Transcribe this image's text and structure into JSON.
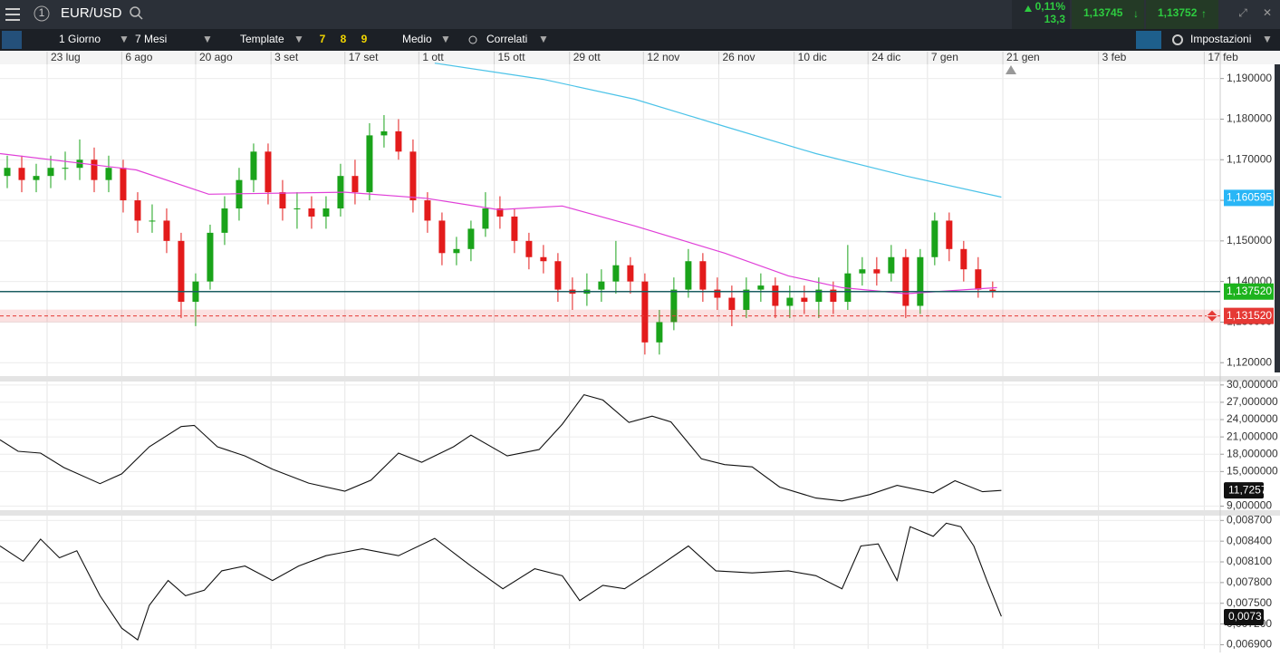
{
  "header": {
    "badge": "1",
    "symbol": "EUR/USD",
    "change_pct": "0,11%",
    "change_pts": "13,3",
    "bid": "1,13745",
    "ask": "1,13752"
  },
  "toolbar": {
    "interval": "1 Giorno",
    "range": "7 Mesi",
    "template": "Template",
    "presets": [
      "7",
      "8",
      "9"
    ],
    "average": "Medio",
    "correlated": "Correlati",
    "settings": "Impostazioni"
  },
  "chart_data": [
    {
      "type": "candlestick",
      "up_color": "#1aa31a",
      "down_color": "#e31b1b",
      "grid": true,
      "xlim": [
        -0.5,
        83.7
      ],
      "xticks": [
        {
          "value": 2.75,
          "label": "23 lug"
        },
        {
          "value": 7.9,
          "label": "6 ago"
        },
        {
          "value": 13,
          "label": "20 ago"
        },
        {
          "value": 18.2,
          "label": "3 set"
        },
        {
          "value": 23.3,
          "label": "17 set"
        },
        {
          "value": 28.4,
          "label": "1 ott"
        },
        {
          "value": 33.6,
          "label": "15 ott"
        },
        {
          "value": 38.8,
          "label": "29 ott"
        },
        {
          "value": 43.9,
          "label": "12 nov"
        },
        {
          "value": 49.1,
          "label": "26 nov"
        },
        {
          "value": 54.3,
          "label": "10 dic"
        },
        {
          "value": 59.4,
          "label": "24 dic"
        },
        {
          "value": 63.5,
          "label": "7 gen"
        },
        {
          "value": 68.7,
          "label": "21 gen"
        },
        {
          "value": 75.3,
          "label": "3 feb"
        },
        {
          "value": 82.6,
          "label": "17 feb"
        }
      ],
      "ylim": [
        1.1167,
        1.1935
      ],
      "yticks": [
        {
          "value": 1.19,
          "label": "1,190000"
        },
        {
          "value": 1.18,
          "label": "1,180000"
        },
        {
          "value": 1.17,
          "label": "1,170000"
        },
        {
          "value": 1.16,
          "label": "1,160000"
        },
        {
          "value": 1.15,
          "label": "1,150000"
        },
        {
          "value": 1.14,
          "label": "1,140000"
        },
        {
          "value": 1.13,
          "label": "1,130000"
        },
        {
          "value": 1.12,
          "label": "1,120000"
        }
      ],
      "open": [
        1.166,
        1.168,
        1.165,
        1.166,
        1.168,
        1.168,
        1.17,
        1.165,
        1.168,
        1.16,
        1.155,
        1.155,
        1.15,
        1.135,
        1.14,
        1.152,
        1.158,
        1.165,
        1.172,
        1.162,
        1.158,
        1.158,
        1.156,
        1.158,
        1.166,
        1.162,
        1.176,
        1.177,
        1.172,
        1.16,
        1.155,
        1.147,
        1.148,
        1.153,
        1.158,
        1.156,
        1.15,
        1.146,
        1.145,
        1.138,
        1.137,
        1.138,
        1.14,
        1.144,
        1.14,
        1.125,
        1.13,
        1.138,
        1.145,
        1.138,
        1.136,
        1.133,
        1.138,
        1.139,
        1.134,
        1.136,
        1.135,
        1.138,
        1.135,
        1.142,
        1.143,
        1.142,
        1.146,
        1.134,
        1.146,
        1.155,
        1.148,
        1.143,
        1.138
      ],
      "high": [
        1.171,
        1.171,
        1.169,
        1.171,
        1.172,
        1.175,
        1.173,
        1.171,
        1.17,
        1.162,
        1.159,
        1.158,
        1.152,
        1.142,
        1.154,
        1.161,
        1.168,
        1.174,
        1.174,
        1.165,
        1.162,
        1.161,
        1.161,
        1.169,
        1.17,
        1.179,
        1.181,
        1.18,
        1.175,
        1.162,
        1.157,
        1.151,
        1.155,
        1.162,
        1.161,
        1.158,
        1.152,
        1.149,
        1.147,
        1.141,
        1.142,
        1.143,
        1.15,
        1.146,
        1.142,
        1.133,
        1.141,
        1.148,
        1.147,
        1.141,
        1.139,
        1.141,
        1.142,
        1.141,
        1.139,
        1.139,
        1.141,
        1.14,
        1.149,
        1.146,
        1.146,
        1.149,
        1.148,
        1.148,
        1.157,
        1.157,
        1.15,
        1.146,
        1.14
      ],
      "low": [
        1.163,
        1.162,
        1.162,
        1.163,
        1.165,
        1.165,
        1.162,
        1.162,
        1.157,
        1.152,
        1.152,
        1.147,
        1.131,
        1.129,
        1.138,
        1.149,
        1.155,
        1.162,
        1.159,
        1.155,
        1.153,
        1.153,
        1.153,
        1.156,
        1.159,
        1.16,
        1.173,
        1.17,
        1.157,
        1.152,
        1.144,
        1.144,
        1.145,
        1.151,
        1.153,
        1.147,
        1.143,
        1.142,
        1.135,
        1.133,
        1.134,
        1.135,
        1.137,
        1.137,
        1.122,
        1.122,
        1.128,
        1.136,
        1.135,
        1.133,
        1.129,
        1.131,
        1.135,
        1.131,
        1.131,
        1.132,
        1.131,
        1.132,
        1.133,
        1.139,
        1.139,
        1.14,
        1.131,
        1.132,
        1.144,
        1.145,
        1.14,
        1.136,
        1.136
      ],
      "close": [
        1.168,
        1.165,
        1.166,
        1.168,
        1.168,
        1.17,
        1.165,
        1.168,
        1.16,
        1.155,
        1.155,
        1.15,
        1.135,
        1.14,
        1.152,
        1.158,
        1.165,
        1.172,
        1.162,
        1.158,
        1.158,
        1.156,
        1.158,
        1.166,
        1.162,
        1.176,
        1.177,
        1.172,
        1.16,
        1.155,
        1.147,
        1.148,
        1.153,
        1.158,
        1.156,
        1.15,
        1.146,
        1.145,
        1.138,
        1.137,
        1.138,
        1.14,
        1.144,
        1.14,
        1.125,
        1.13,
        1.138,
        1.145,
        1.138,
        1.136,
        1.133,
        1.138,
        1.139,
        1.134,
        1.136,
        1.135,
        1.138,
        1.135,
        1.142,
        1.143,
        1.142,
        1.146,
        1.134,
        1.146,
        1.155,
        1.148,
        1.143,
        1.138,
        1.1375
      ],
      "series": [
        {
          "color": "#e040d8",
          "x": [
            -0.5,
            8.9,
            13.9,
            23.3,
            28.9,
            33.9,
            38.3,
            43.3,
            49.5,
            53.9,
            57.6,
            62,
            68.3
          ],
          "values": [
            1.1715,
            1.1675,
            1.1615,
            1.162,
            1.1605,
            1.1577,
            1.1586,
            1.1537,
            1.147,
            1.1414,
            1.1385,
            1.137,
            1.1385
          ]
        },
        {
          "color": "#4cc3e8",
          "x": [
            29.5,
            37,
            43.3,
            49.5,
            55.8,
            62,
            68.6
          ],
          "values": [
            1.1938,
            1.1898,
            1.1849,
            1.1782,
            1.1715,
            1.166,
            1.1608
          ]
        }
      ],
      "levels": [
        {
          "value": 1.160595,
          "label": "1,160595",
          "color": "#29b6f6",
          "line": "none"
        },
        {
          "value": 1.13752,
          "label": "1,137520",
          "color": "#1db31d",
          "line": "solid"
        },
        {
          "value": 1.13152,
          "label": "1,131520",
          "color": "#e53935",
          "line": "dashed"
        }
      ]
    },
    {
      "type": "line",
      "color": "#111111",
      "xlim": [
        -0.5,
        83.7
      ],
      "ylim": [
        8.3,
        30.6
      ],
      "yticks": [
        {
          "value": 30,
          "label": "30,000000"
        },
        {
          "value": 27,
          "label": "27,000000"
        },
        {
          "value": 24,
          "label": "24,000000"
        },
        {
          "value": 21,
          "label": "21,000000"
        },
        {
          "value": 18,
          "label": "18,000000"
        },
        {
          "value": 15,
          "label": "15,000000"
        },
        {
          "value": 9,
          "label": "9,000000"
        }
      ],
      "x": [
        -0.5,
        0.75,
        2.3,
        3.9,
        6.4,
        7.9,
        9.8,
        12,
        12.9,
        14.5,
        16.4,
        18.3,
        20.8,
        23.3,
        25.1,
        27,
        28.6,
        30.8,
        32,
        34.5,
        36.7,
        38.3,
        39.8,
        41.1,
        42.9,
        44.5,
        45.8,
        47.9,
        49.5,
        51.4,
        53.3,
        55.8,
        57.6,
        59.5,
        61.4,
        63.9,
        65.4,
        67.3,
        68.6
      ],
      "values": [
        20.5,
        18.5,
        18.2,
        15.7,
        12.9,
        14.6,
        19.3,
        22.8,
        23,
        19.3,
        17.7,
        15.4,
        13,
        11.6,
        13.5,
        18.2,
        16.6,
        19.3,
        21.3,
        17.7,
        18.8,
        23.2,
        28.3,
        27.4,
        23.5,
        24.6,
        23.6,
        17.2,
        16.2,
        15.8,
        12.3,
        10.4,
        9.9,
        11,
        12.6,
        11.3,
        13.4,
        11.5,
        11.7257
      ],
      "last": {
        "value": 11.7257,
        "label": "11,7257"
      }
    },
    {
      "type": "line",
      "color": "#111111",
      "xlim": [
        -0.5,
        83.7
      ],
      "ylim": [
        0.00684,
        0.00877
      ],
      "yticks": [
        {
          "value": 0.0087,
          "label": "0,008700"
        },
        {
          "value": 0.0084,
          "label": "0,008400"
        },
        {
          "value": 0.0081,
          "label": "0,008100"
        },
        {
          "value": 0.0078,
          "label": "0,007800"
        },
        {
          "value": 0.0075,
          "label": "0,007500"
        },
        {
          "value": 0.0072,
          "label": "0,007200"
        },
        {
          "value": 0.0069,
          "label": "0,006900"
        }
      ],
      "x": [
        -0.5,
        1.1,
        2.3,
        3.6,
        4.8,
        6.4,
        7.9,
        9,
        9.8,
        11.1,
        12.3,
        13.6,
        14.8,
        16.4,
        18.3,
        20.1,
        22,
        24.5,
        27,
        29.5,
        32,
        34.2,
        36.4,
        38.3,
        39.5,
        41.1,
        42.6,
        44.5,
        47,
        48.9,
        51.4,
        53.9,
        55.8,
        57.6,
        58.9,
        60.1,
        61.4,
        62.3,
        63.9,
        64.8,
        65.8,
        66.7,
        67.6,
        68.6
      ],
      "values": [
        0.00833,
        0.00811,
        0.00843,
        0.00816,
        0.00826,
        0.00761,
        0.00714,
        0.00697,
        0.00747,
        0.00783,
        0.00761,
        0.00769,
        0.00797,
        0.00804,
        0.00783,
        0.00804,
        0.00819,
        0.00829,
        0.00819,
        0.00844,
        0.00804,
        0.00771,
        0.008,
        0.0079,
        0.00754,
        0.00776,
        0.00771,
        0.00797,
        0.00833,
        0.00797,
        0.00794,
        0.00797,
        0.0079,
        0.00771,
        0.00833,
        0.00836,
        0.00783,
        0.00861,
        0.00847,
        0.00866,
        0.00861,
        0.00833,
        0.00783,
        0.00731
      ],
      "last": {
        "value": 0.0073,
        "label": "0,0073"
      }
    }
  ]
}
